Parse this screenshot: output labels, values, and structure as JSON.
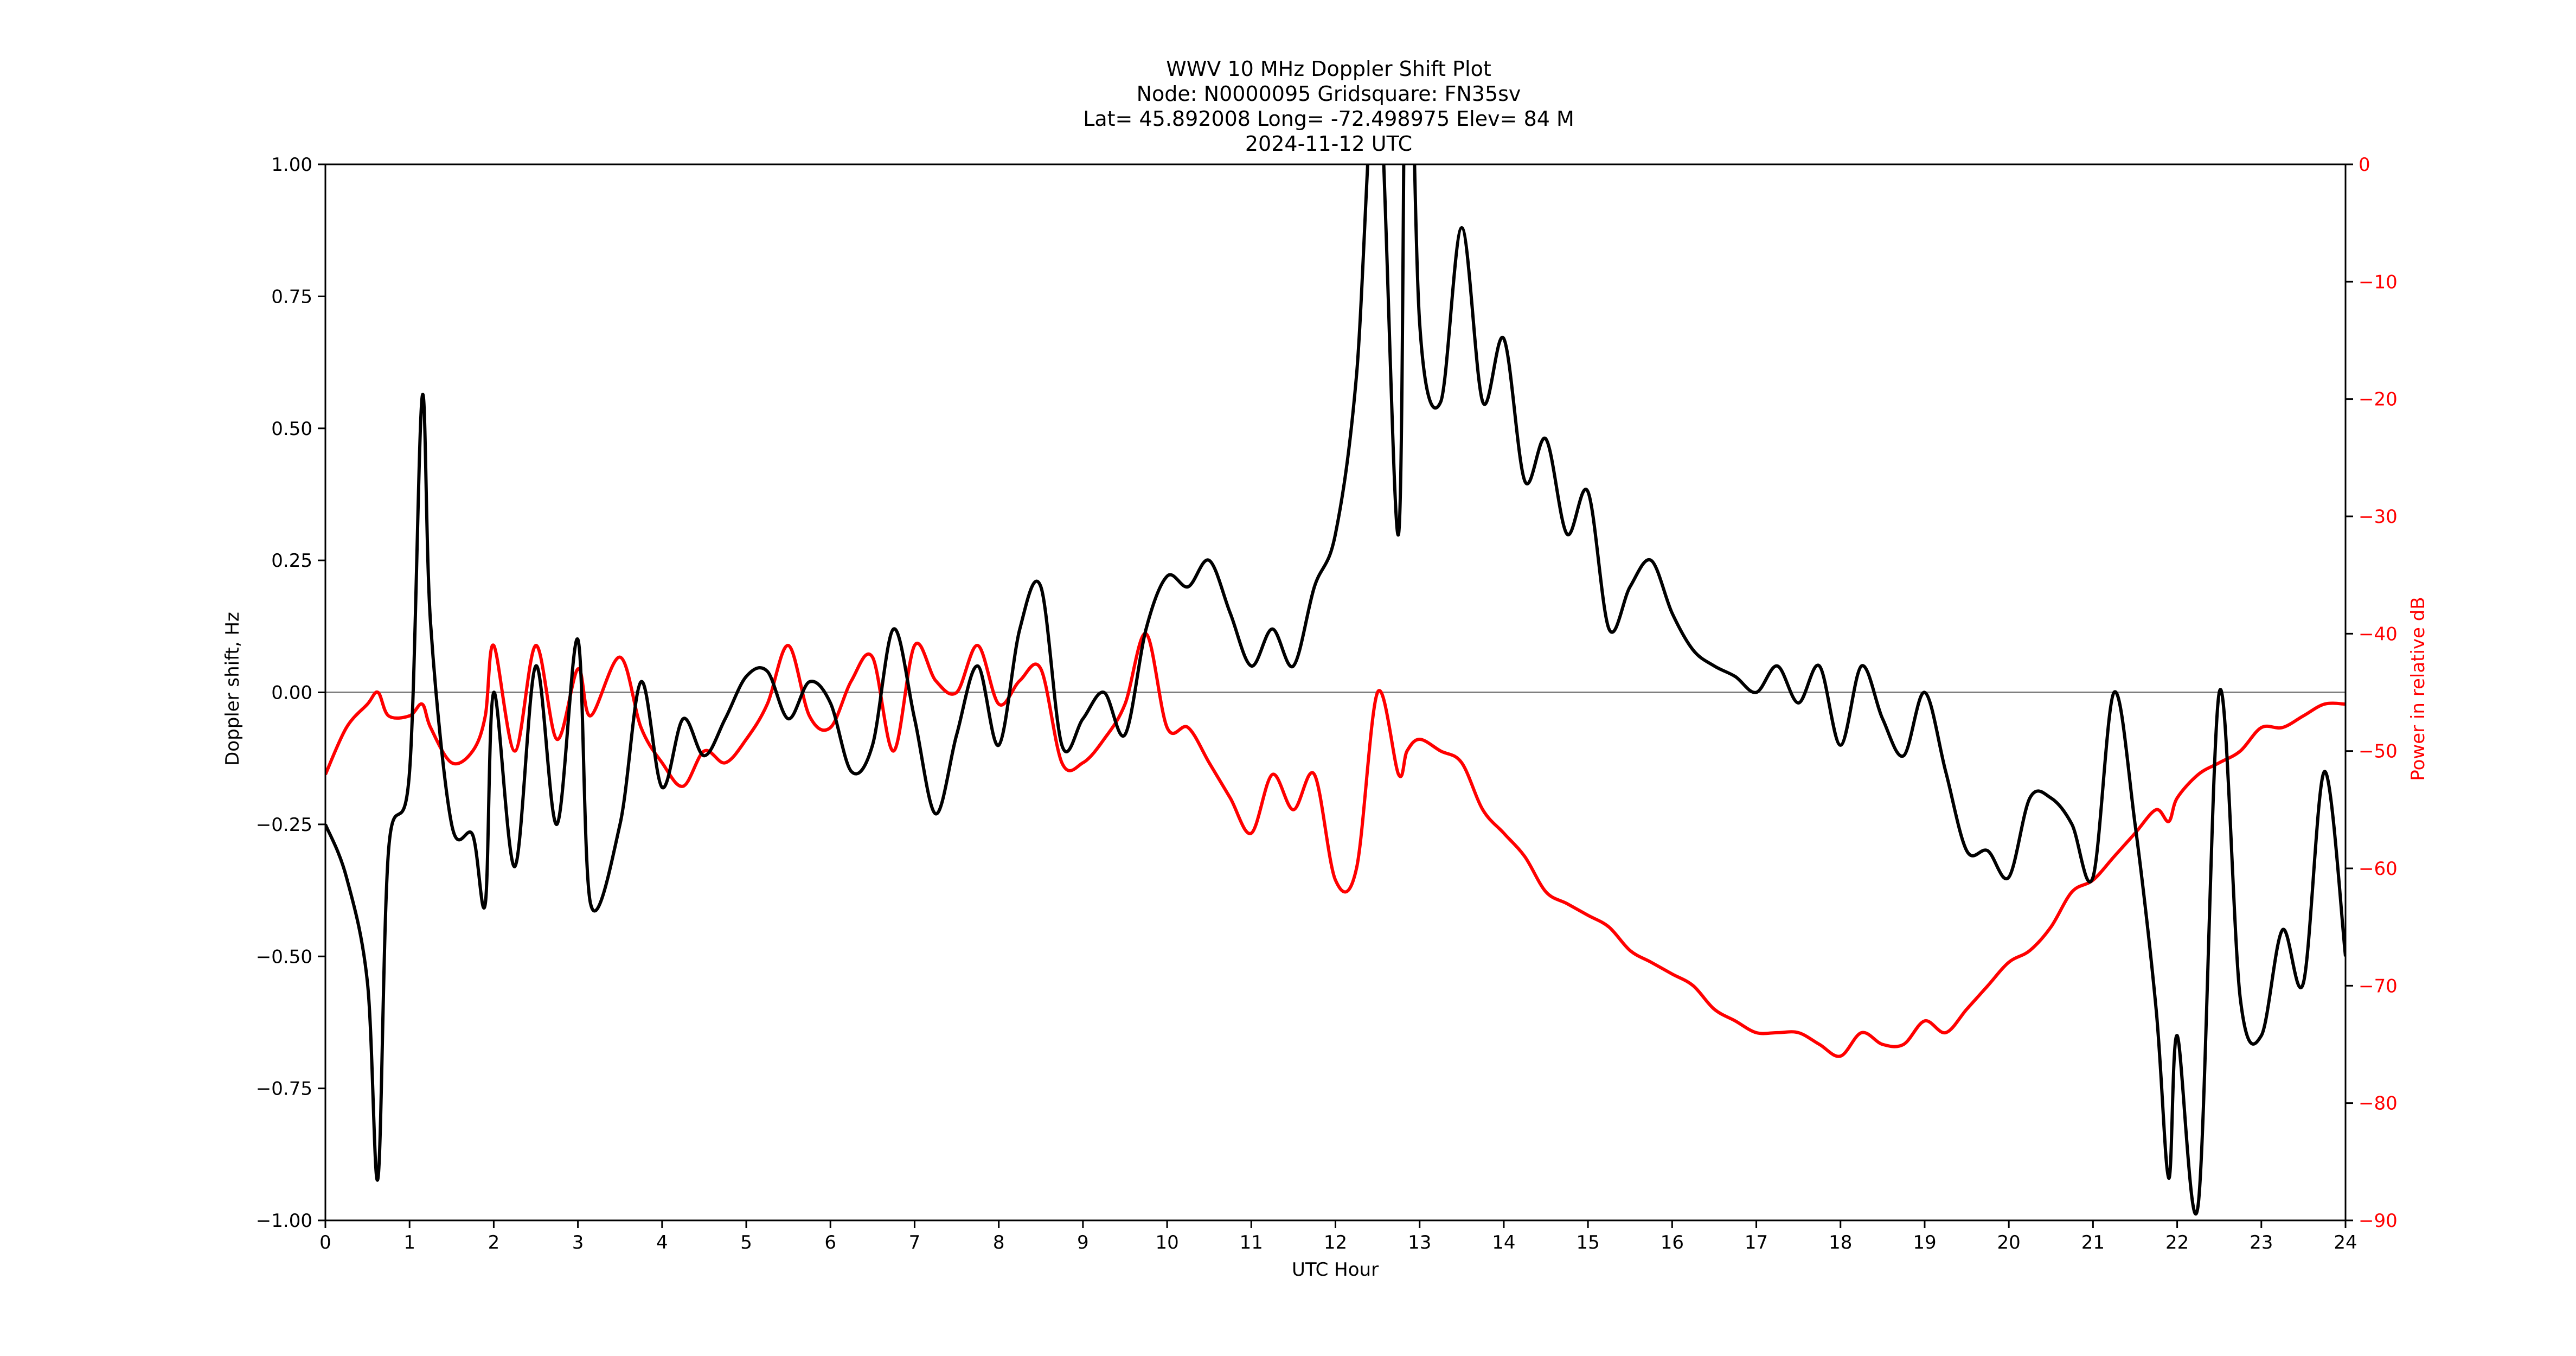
{
  "figure": {
    "title_lines": [
      "WWV 10 MHz Doppler Shift Plot",
      "Node:  N0000095     Gridsquare:  FN35sv",
      "Lat= 45.892008    Long= -72.498975    Elev= 84 M",
      "2024-11-12  UTC"
    ],
    "xlabel": "UTC Hour",
    "ylabel_left": "Doppler shift, Hz",
    "ylabel_right": "Power in relative dB",
    "x_ticks": [
      "0",
      "1",
      "2",
      "3",
      "4",
      "5",
      "6",
      "7",
      "8",
      "9",
      "10",
      "11",
      "12",
      "13",
      "14",
      "15",
      "16",
      "17",
      "18",
      "19",
      "20",
      "21",
      "22",
      "23",
      "24"
    ],
    "y_left_ticks": [
      "1.00",
      "0.75",
      "0.50",
      "0.25",
      "0.00",
      "−0.25",
      "−0.50",
      "−0.75",
      "−1.00"
    ],
    "y_right_ticks": [
      "0",
      "−10",
      "−20",
      "−30",
      "−40",
      "−50",
      "−60",
      "−70",
      "−80",
      "−90"
    ],
    "colors": {
      "doppler": "#000000",
      "power": "#ff0000",
      "zero_line": "#808080",
      "right_axis_text": "#ff0000"
    }
  },
  "chart_data": {
    "type": "line",
    "title": "WWV 10 MHz Doppler Shift Plot",
    "subtitle": "Node: N0000095  Gridsquare: FN35sv | Lat= 45.892008 Long= -72.498975 Elev= 84 M | 2024-11-12 UTC",
    "xlabel": "UTC Hour",
    "ylabel": "Doppler shift, Hz",
    "y2label": "Power in relative dB",
    "xlim": [
      0,
      24
    ],
    "ylim": [
      -1.0,
      1.0
    ],
    "y2lim": [
      -90,
      0
    ],
    "grid": false,
    "reference_line": {
      "axis": "y",
      "value": 0.0,
      "color": "#808080"
    },
    "x": [
      0,
      0.25,
      0.5,
      0.625,
      0.75,
      1.0,
      1.15,
      1.25,
      1.5,
      1.75,
      1.9,
      2.0,
      2.25,
      2.5,
      2.75,
      3.0,
      3.15,
      3.5,
      3.75,
      4.0,
      4.25,
      4.5,
      4.75,
      5.0,
      5.25,
      5.5,
      5.75,
      6.0,
      6.25,
      6.5,
      6.75,
      7.0,
      7.25,
      7.5,
      7.75,
      8.0,
      8.25,
      8.5,
      8.75,
      9.0,
      9.25,
      9.5,
      9.75,
      10.0,
      10.25,
      10.5,
      10.75,
      11.0,
      11.25,
      11.5,
      11.75,
      12.0,
      12.25,
      12.5,
      12.75,
      12.85,
      13.0,
      13.25,
      13.5,
      13.75,
      14.0,
      14.25,
      14.5,
      14.75,
      15.0,
      15.25,
      15.5,
      15.75,
      16.0,
      16.25,
      16.5,
      16.75,
      17.0,
      17.25,
      17.5,
      17.75,
      18.0,
      18.25,
      18.5,
      18.75,
      19.0,
      19.25,
      19.5,
      19.75,
      20.0,
      20.25,
      20.5,
      20.75,
      21.0,
      21.25,
      21.5,
      21.75,
      21.9,
      22.0,
      22.25,
      22.5,
      22.75,
      23.0,
      23.25,
      23.5,
      23.75,
      24.0
    ],
    "series": [
      {
        "name": "Doppler shift (Hz)",
        "axis": "left",
        "color": "#000000",
        "values": [
          -0.25,
          -0.35,
          -0.55,
          -0.92,
          -0.3,
          -0.15,
          0.56,
          0.13,
          -0.25,
          -0.27,
          -0.4,
          0.0,
          -0.33,
          0.05,
          -0.25,
          0.1,
          -0.4,
          -0.25,
          0.02,
          -0.18,
          -0.05,
          -0.12,
          -0.05,
          0.03,
          0.04,
          -0.05,
          0.02,
          -0.02,
          -0.15,
          -0.1,
          0.12,
          -0.05,
          -0.23,
          -0.08,
          0.05,
          -0.1,
          0.12,
          0.2,
          -0.1,
          -0.05,
          0.0,
          -0.08,
          0.12,
          0.22,
          0.2,
          0.25,
          0.15,
          0.05,
          0.12,
          0.05,
          0.2,
          0.3,
          0.6,
          1.2,
          0.3,
          1.5,
          0.7,
          0.55,
          0.88,
          0.55,
          0.67,
          0.4,
          0.48,
          0.3,
          0.38,
          0.12,
          0.2,
          0.25,
          0.15,
          0.08,
          0.05,
          0.03,
          0.0,
          0.05,
          -0.02,
          0.05,
          -0.1,
          0.05,
          -0.05,
          -0.12,
          0.0,
          -0.15,
          -0.3,
          -0.3,
          -0.35,
          -0.2,
          -0.2,
          -0.25,
          -0.35,
          0.0,
          -0.25,
          -0.6,
          -0.92,
          -0.65,
          -0.97,
          0.0,
          -0.58,
          -0.65,
          -0.45,
          -0.55,
          -0.15,
          -0.5
        ]
      },
      {
        "name": "Power (relative dB)",
        "axis": "right",
        "color": "#ff0000",
        "values": [
          -52,
          -48,
          -46,
          -45,
          -47,
          -47,
          -46,
          -48,
          -51,
          -50,
          -47,
          -41,
          -50,
          -41,
          -49,
          -43,
          -47,
          -42,
          -48,
          -51,
          -53,
          -50,
          -51,
          -49,
          -46,
          -41,
          -47,
          -48,
          -44,
          -42,
          -50,
          -41,
          -44,
          -45,
          -41,
          -46,
          -44,
          -43,
          -51,
          -51,
          -49,
          -46,
          -40,
          -48,
          -48,
          -51,
          -54,
          -57,
          -52,
          -55,
          -52,
          -61,
          -60,
          -45,
          -52,
          -50,
          -49,
          -50,
          -51,
          -55,
          -57,
          -59,
          -62,
          -63,
          -64,
          -65,
          -67,
          -68,
          -69,
          -70,
          -72,
          -73,
          -74,
          -74,
          -74,
          -75,
          -76,
          -74,
          -75,
          -75,
          -73,
          -74,
          -72,
          -70,
          -68,
          -67,
          -65,
          -62,
          -61,
          -59,
          -57,
          -55,
          -56,
          -54,
          -52,
          -51,
          -50,
          -48,
          -48,
          -47,
          -46,
          -46
        ]
      }
    ]
  }
}
